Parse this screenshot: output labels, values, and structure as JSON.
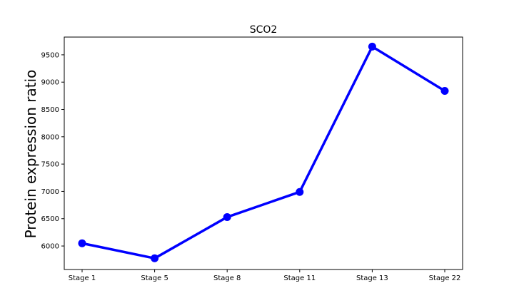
{
  "chart_data": {
    "type": "line",
    "title": "SCO2",
    "xlabel": "",
    "ylabel": "Protein expression ratio",
    "categories": [
      "Stage 1",
      "Stage 5",
      "Stage 8",
      "Stage 11",
      "Stage 13",
      "Stage 22"
    ],
    "series": [
      {
        "values": [
          6050,
          5775,
          6530,
          6990,
          9650,
          8840
        ],
        "color": "#0000ff"
      }
    ],
    "ylim": [
      5570,
      9825
    ],
    "yticks": [
      6000,
      6500,
      7000,
      7500,
      8000,
      8500,
      9000,
      9500
    ],
    "ytick_labels": [
      "6000",
      "6500",
      "7000",
      "7500",
      "8000",
      "8500",
      "9000",
      "9500"
    ],
    "grid": false,
    "legend": "none"
  }
}
